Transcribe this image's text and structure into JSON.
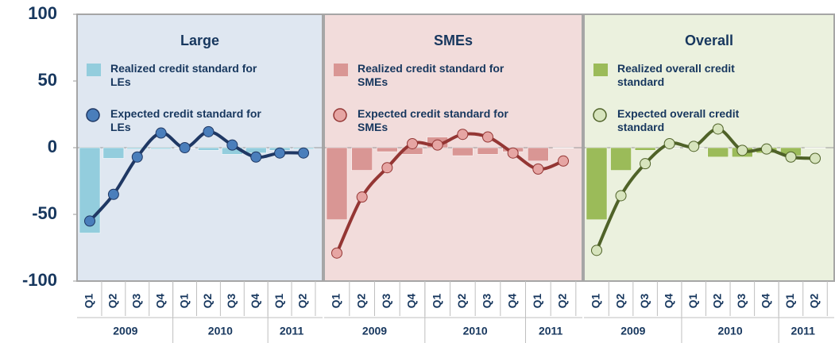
{
  "chart_data": {
    "type": "combo",
    "ylim": [
      -100,
      100
    ],
    "yticks": [
      -100,
      -50,
      0,
      50,
      100
    ],
    "panels": [
      {
        "title": "Large",
        "categories": [
          "Q1",
          "Q2",
          "Q3",
          "Q4",
          "Q1",
          "Q2",
          "Q3",
          "Q4",
          "Q1",
          "Q2"
        ],
        "year_groups": [
          "2009",
          "2010",
          "2011"
        ],
        "background": "#dfe7f1",
        "series": [
          {
            "name": "Realized credit standard for LEs",
            "type": "bar",
            "color": "#93cddd",
            "values": [
              -64,
              -8,
              -1,
              -1,
              0,
              -2,
              -5,
              -4,
              -2,
              -1
            ]
          },
          {
            "name": "Expected credit standard for LEs",
            "type": "line",
            "color": "#1f3864",
            "marker_color": "#4a7ebb",
            "values": [
              -55,
              -35,
              -7,
              11,
              0,
              12,
              2,
              -7,
              -4,
              -4
            ]
          }
        ]
      },
      {
        "title": "SMEs",
        "categories": [
          "Q1",
          "Q2",
          "Q3",
          "Q4",
          "Q1",
          "Q2",
          "Q3",
          "Q4",
          "Q1",
          "Q2"
        ],
        "year_groups": [
          "2009",
          "2010",
          "2011"
        ],
        "background": "#f2dcdb",
        "series": [
          {
            "name": "Realized credit standard for SMEs",
            "type": "bar",
            "color": "#d99694",
            "values": [
              -54,
              -17,
              -3,
              -5,
              8,
              -6,
              -5,
              -3,
              -10,
              0
            ]
          },
          {
            "name": "Expected credit standard for SMEs",
            "type": "line",
            "color": "#943634",
            "marker_color": "#e6a5a3",
            "values": [
              -79,
              -37,
              -15,
              3,
              2,
              10,
              8,
              -4,
              -16,
              -10
            ]
          }
        ]
      },
      {
        "title": "Overall",
        "categories": [
          "Q1",
          "Q2",
          "Q3",
          "Q4",
          "Q1",
          "Q2",
          "Q3",
          "Q4",
          "Q1",
          "Q2"
        ],
        "year_groups": [
          "2009",
          "2010",
          "2011"
        ],
        "background": "#ebf1de",
        "series": [
          {
            "name": "Realized overall credit standard",
            "type": "bar",
            "color": "#9bbb59",
            "values": [
              -54,
              -17,
              -2,
              0,
              0,
              -7,
              -7,
              -4,
              -6,
              0
            ]
          },
          {
            "name": "Expected overall credit standard",
            "type": "line",
            "color": "#4f6228",
            "marker_color": "#d7e4bd",
            "values": [
              -77,
              -36,
              -12,
              3,
              1,
              14,
              -2,
              -1,
              -7,
              -8
            ]
          }
        ]
      }
    ]
  }
}
